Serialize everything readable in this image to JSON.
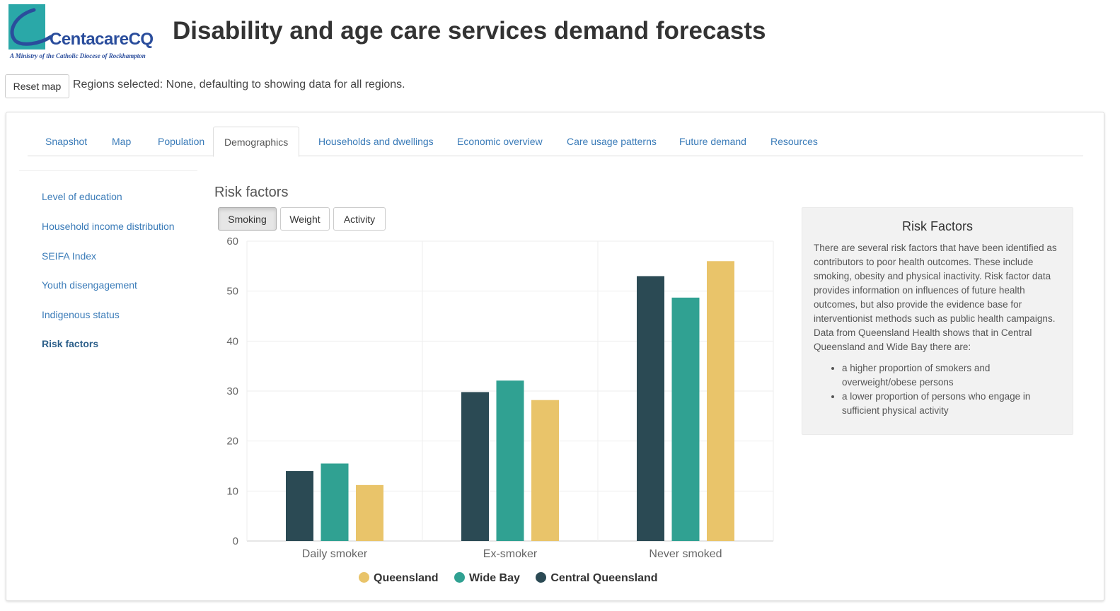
{
  "header": {
    "logo_name": "CentacareCQ",
    "logo_tagline": "A Ministry of the Catholic Diocese of Rockhampton",
    "title": "Disability and age care services demand forecasts"
  },
  "toolbar": {
    "reset_label": "Reset map",
    "region_status": "Regions selected: None, defaulting to showing data for all regions."
  },
  "tabs": [
    {
      "label": "Snapshot"
    },
    {
      "label": "Map"
    },
    {
      "label": "Population"
    },
    {
      "label": "Demographics"
    },
    {
      "label": "Households and dwellings"
    },
    {
      "label": "Economic overview"
    },
    {
      "label": "Care usage patterns"
    },
    {
      "label": "Future demand"
    },
    {
      "label": "Resources"
    }
  ],
  "active_tab": "Demographics",
  "sidebar": {
    "items": [
      {
        "label": "Level of education"
      },
      {
        "label": "Household income distribution"
      },
      {
        "label": "SEIFA Index"
      },
      {
        "label": "Youth disengagement"
      },
      {
        "label": "Indigenous status"
      },
      {
        "label": "Risk factors"
      }
    ],
    "active": "Risk factors"
  },
  "section": {
    "title": "Risk factors",
    "buttons": [
      {
        "label": "Smoking"
      },
      {
        "label": "Weight"
      },
      {
        "label": "Activity"
      }
    ],
    "active_button": "Smoking"
  },
  "info": {
    "title": "Risk Factors",
    "body": "There are several risk factors that have been identified as contributors to poor health outcomes. These include smoking, obesity and physical inactivity. Risk factor data provides information on influences of future health outcomes, but also provide the evidence base for interventionist methods such as public health campaigns. Data from Queensland Health shows that in Central Queensland and Wide Bay there are:",
    "bullets": [
      "a higher proportion of smokers and overweight/obese persons",
      "a lower proportion of persons who engage in sufficient physical activity"
    ]
  },
  "chart_data": {
    "type": "bar",
    "categories": [
      "Daily smoker",
      "Ex-smoker",
      "Never smoked"
    ],
    "series": [
      {
        "name": "Central Queensland",
        "color": "#2b4a54",
        "values": [
          14,
          29.8,
          53
        ]
      },
      {
        "name": "Wide Bay",
        "color": "#30a192",
        "values": [
          15.5,
          32.1,
          48.7
        ]
      },
      {
        "name": "Queensland",
        "color": "#e9c46a",
        "values": [
          11.2,
          28.2,
          56
        ]
      }
    ],
    "legend_order": [
      "Queensland",
      "Wide Bay",
      "Central Queensland"
    ],
    "ylim": [
      0,
      60
    ],
    "yticks": [
      0,
      10,
      20,
      30,
      40,
      50,
      60
    ],
    "grid": true,
    "legend_position": "bottom",
    "title": "",
    "xlabel": "",
    "ylabel": ""
  }
}
